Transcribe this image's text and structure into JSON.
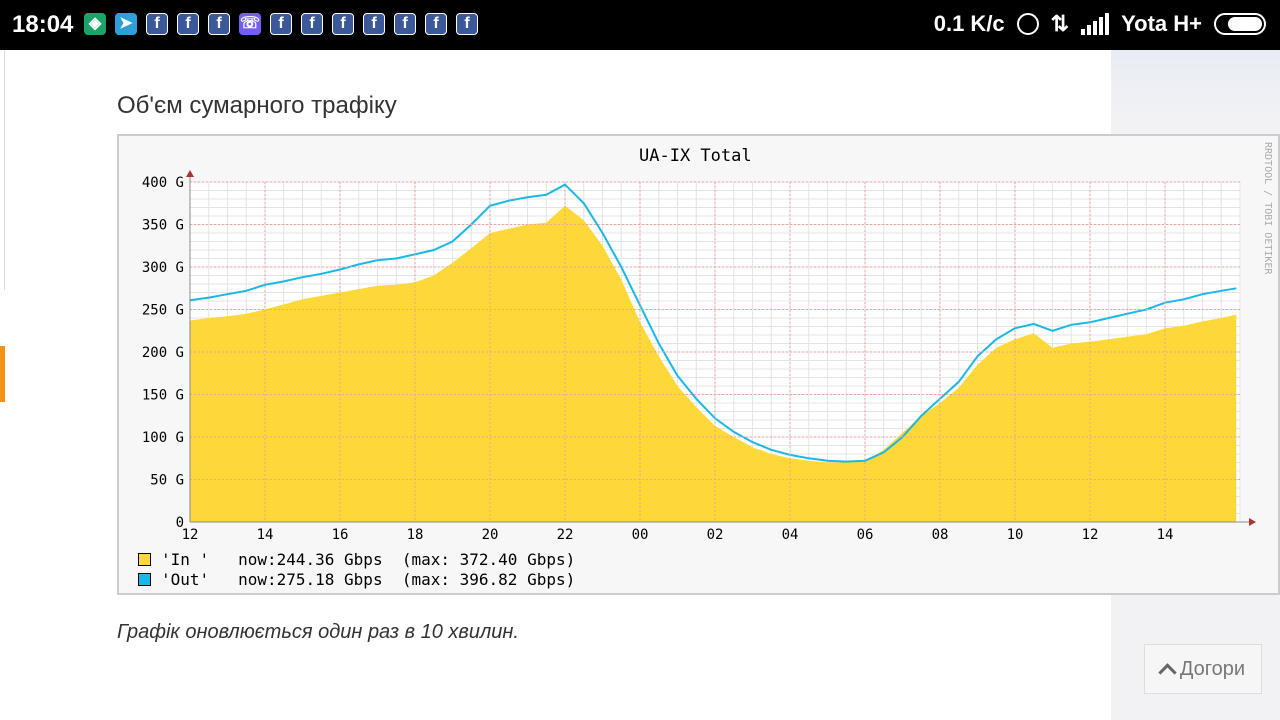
{
  "status_bar": {
    "time": "18:04",
    "speed": "0.1 K/c",
    "carrier": "Yota H+",
    "notification_icons": [
      "shield-icon",
      "telegram-icon",
      "facebook-icon",
      "facebook-icon",
      "facebook-icon",
      "viber-icon",
      "facebook-icon",
      "facebook-icon",
      "facebook-icon",
      "facebook-icon",
      "facebook-icon",
      "facebook-icon",
      "facebook-icon"
    ]
  },
  "section": {
    "title": "Об'єм сумарного трафіку",
    "caption": "Графік оновлюється один раз в 10 хвилин."
  },
  "back_to_top": {
    "label": "Догори"
  },
  "colors": {
    "in": "#fcd839",
    "out": "#19b8e6",
    "grid_major": "#f0a0a0",
    "accent": "#f39219"
  },
  "chart_data": {
    "type": "area",
    "title": "UA-IX Total",
    "watermark": "RRDTOOL / TOBI OETIKER",
    "x": [
      12,
      12.5,
      13,
      13.5,
      14,
      14.5,
      15,
      15.5,
      16,
      16.5,
      17,
      17.5,
      18,
      18.5,
      19,
      19.5,
      20,
      20.5,
      21,
      21.5,
      22,
      22.5,
      23,
      23.5,
      24,
      24.5,
      25,
      25.5,
      26,
      26.5,
      27,
      27.5,
      28,
      28.5,
      29,
      29.5,
      30,
      30.5,
      31,
      31.5,
      32,
      32.5,
      33,
      33.5,
      34,
      34.5,
      35,
      35.5,
      36,
      36.5,
      37,
      37.5,
      38,
      38.5,
      39,
      39.5,
      39.9
    ],
    "xtick_labels": [
      "12",
      "14",
      "16",
      "18",
      "20",
      "22",
      "00",
      "02",
      "04",
      "06",
      "08",
      "10",
      "12",
      "14"
    ],
    "ytick_labels": [
      "0",
      "50 G",
      "100 G",
      "150 G",
      "200 G",
      "250 G",
      "300 G",
      "350 G",
      "400 G"
    ],
    "ylim": [
      0,
      400
    ],
    "series": [
      {
        "name": "'In '",
        "values": [
          237,
          240,
          242,
          245,
          250,
          256,
          262,
          266,
          270,
          274,
          278,
          279,
          282,
          290,
          305,
          322,
          340,
          345,
          350,
          352,
          372,
          355,
          325,
          285,
          235,
          195,
          160,
          135,
          113,
          100,
          88,
          80,
          75,
          72,
          70,
          70,
          71,
          85,
          105,
          125,
          140,
          158,
          185,
          205,
          215,
          222,
          205,
          210,
          212,
          215,
          218,
          221,
          228,
          231,
          236,
          240,
          244
        ]
      },
      {
        "name": "'Out'",
        "values": [
          261,
          264,
          268,
          272,
          279,
          283,
          288,
          292,
          297,
          303,
          308,
          310,
          315,
          320,
          330,
          350,
          372,
          378,
          382,
          385,
          397,
          375,
          340,
          300,
          255,
          210,
          172,
          145,
          122,
          106,
          94,
          85,
          79,
          75,
          72,
          71,
          72,
          82,
          100,
          125,
          145,
          165,
          195,
          215,
          228,
          233,
          225,
          232,
          235,
          240,
          245,
          250,
          258,
          262,
          268,
          272,
          275
        ]
      }
    ],
    "legend": [
      {
        "name": "'In '",
        "now": "now:244.36 Gbps",
        "max": "(max: 372.40 Gbps)"
      },
      {
        "name": "'Out'",
        "now": "now:275.18 Gbps",
        "max": "(max: 396.82 Gbps)"
      }
    ]
  }
}
